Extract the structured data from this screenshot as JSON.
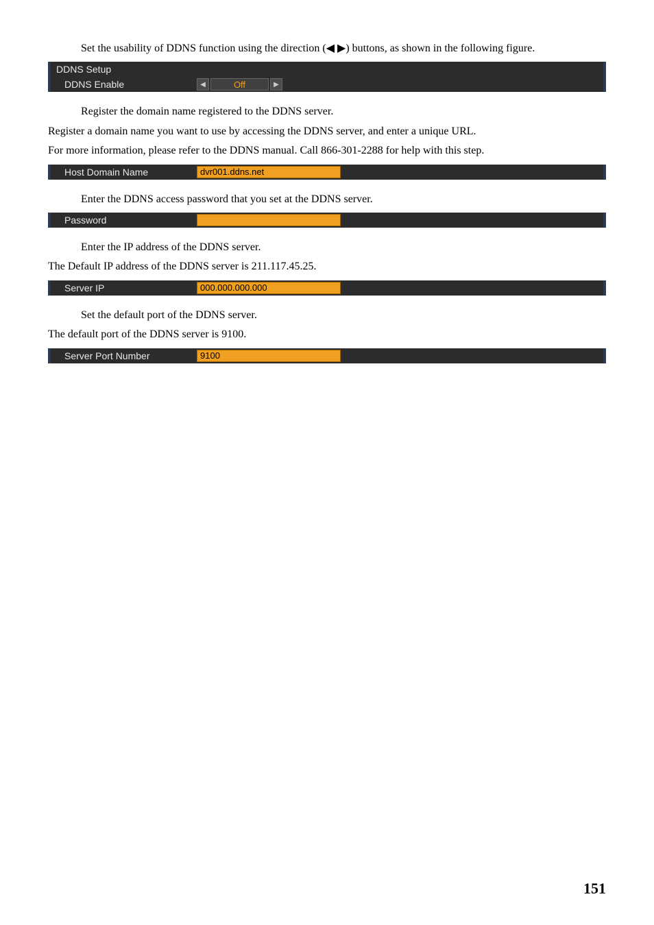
{
  "para1": "Set the usability of DDNS function using the direction (◀ ▶) buttons, as shown in the following figure.",
  "box1": {
    "title": "DDNS Setup",
    "rowLabel": "DDNS Enable",
    "value": "Off"
  },
  "para2a": "Register the domain name registered to the DDNS server.",
  "para2b": "Register a domain name you want to use by accessing the DDNS server, and enter a unique URL.",
  "para2c": "For more information, please refer to the DDNS manual. Call 866-301-2288 for help with this step.",
  "box2": {
    "label": "Host Domain Name",
    "value": "dvr001.ddns.net"
  },
  "para3": "Enter the DDNS access password that you set at the DDNS server.",
  "box3": {
    "label": "Password",
    "value": ""
  },
  "para4a": "Enter the IP address of the DDNS server.",
  "para4b": "The Default IP address of the DDNS server is 211.117.45.25.",
  "box4": {
    "label": "Server IP",
    "value": "000.000.000.000"
  },
  "para5a": "Set the default port of the DDNS server.",
  "para5b": "The default port of the DDNS server is 9100.",
  "box5": {
    "label": "Server Port Number",
    "value": "9100"
  },
  "pageNumber": "151",
  "glyphs": {
    "leftTri": "◀",
    "rightTri": "▶"
  }
}
